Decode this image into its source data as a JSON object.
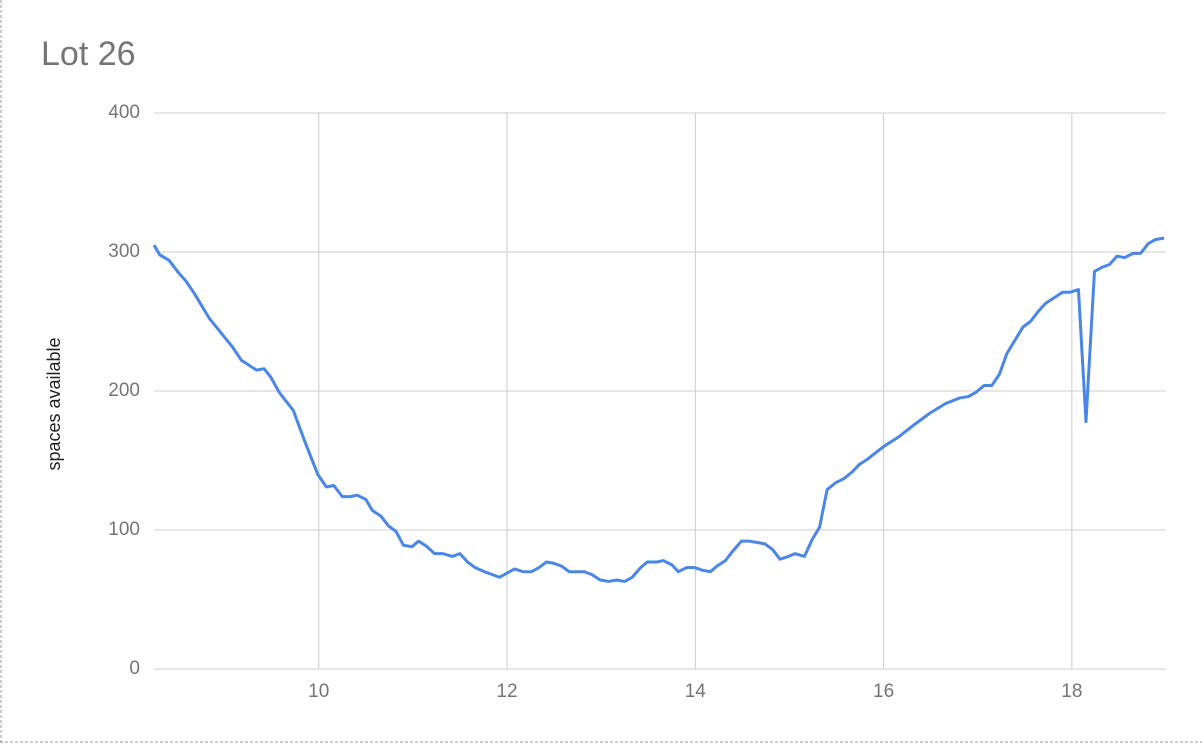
{
  "chart_data": {
    "type": "line",
    "title": "Lot 26",
    "y_label": "spaces available",
    "x": [
      8.25,
      8.31,
      8.41,
      8.5,
      8.59,
      8.68,
      8.84,
      9.08,
      9.18,
      9.34,
      9.42,
      9.49,
      9.58,
      9.73,
      9.85,
      9.99,
      10.08,
      10.16,
      10.25,
      10.33,
      10.41,
      10.5,
      10.57,
      10.66,
      10.74,
      10.82,
      10.9,
      10.99,
      11.06,
      11.15,
      11.23,
      11.32,
      11.42,
      11.5,
      11.58,
      11.66,
      11.76,
      11.84,
      11.92,
      12.0,
      12.08,
      12.17,
      12.26,
      12.34,
      12.42,
      12.5,
      12.58,
      12.66,
      12.82,
      12.9,
      12.99,
      13.08,
      13.16,
      13.25,
      13.33,
      13.42,
      13.49,
      13.59,
      13.66,
      13.75,
      13.82,
      13.91,
      13.99,
      14.08,
      14.16,
      14.23,
      14.32,
      14.4,
      14.49,
      14.57,
      14.66,
      14.74,
      14.82,
      14.9,
      14.99,
      15.06,
      15.16,
      15.24,
      15.32,
      15.4,
      15.49,
      15.58,
      15.67,
      15.74,
      15.83,
      16.0,
      16.16,
      16.33,
      16.49,
      16.66,
      16.81,
      16.9,
      16.98,
      17.07,
      17.15,
      17.23,
      17.31,
      17.4,
      17.48,
      17.56,
      17.64,
      17.72,
      17.81,
      17.9,
      17.98,
      18.07,
      18.15,
      18.24,
      18.32,
      18.4,
      18.48,
      18.56,
      18.65,
      18.73,
      18.81,
      18.89,
      18.98
    ],
    "series": [
      {
        "name": "spaces available",
        "color": "#4a86e8",
        "values": [
          305,
          298,
          294,
          286,
          279,
          270,
          252,
          232,
          222,
          215,
          216,
          210,
          199,
          186,
          164,
          140,
          131,
          132,
          124,
          124,
          125,
          122,
          114,
          110,
          103,
          99,
          89,
          88,
          92,
          88,
          83,
          83,
          81,
          83,
          77,
          73,
          70,
          68,
          66,
          69,
          72,
          70,
          70,
          73,
          77,
          76,
          74,
          70,
          70,
          68,
          64,
          63,
          64,
          63,
          66,
          73,
          77,
          77,
          78,
          75,
          70,
          73,
          73,
          71,
          70,
          74,
          78,
          85,
          92,
          92,
          91,
          90,
          86,
          79,
          81,
          83,
          81,
          93,
          102,
          129,
          134,
          137,
          142,
          147,
          151,
          160,
          167,
          176,
          184,
          191,
          195,
          196,
          199,
          204,
          204,
          212,
          227,
          237,
          246,
          250,
          257,
          263,
          267,
          271,
          271,
          273,
          178,
          286,
          289,
          291,
          297,
          296,
          299,
          299,
          306,
          309,
          310
        ]
      }
    ],
    "xlim": [
      8.25,
      19
    ],
    "xticks": [
      10,
      12,
      14,
      16,
      18
    ],
    "ylim": [
      0,
      400
    ],
    "yticks": [
      0,
      100,
      200,
      300,
      400
    ],
    "grid": true
  }
}
